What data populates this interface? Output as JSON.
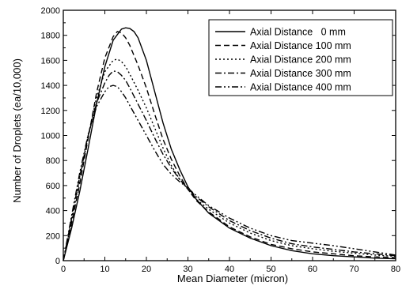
{
  "chart_data": {
    "type": "line",
    "xlabel": "Mean Diameter (micron)",
    "ylabel": "Number of Droplets  (ea/10,000)",
    "xlim": [
      0,
      80
    ],
    "ylim": [
      0,
      2000
    ],
    "xticks": [
      0,
      10,
      20,
      30,
      40,
      50,
      60,
      70,
      80
    ],
    "yticks": [
      0,
      200,
      400,
      600,
      800,
      1000,
      1200,
      1400,
      1600,
      1800,
      2000
    ],
    "grid": false,
    "legend_position": "top-right",
    "series": [
      {
        "name": "Axial Distance   0 mm",
        "dash": "none",
        "x": [
          0,
          2,
          4,
          6,
          8,
          10,
          12,
          14,
          15,
          16,
          17,
          18,
          20,
          22,
          24,
          26,
          28,
          30,
          32,
          35,
          40,
          45,
          50,
          55,
          60,
          65,
          70,
          75,
          80
        ],
        "y": [
          0,
          260,
          560,
          900,
          1250,
          1550,
          1760,
          1850,
          1860,
          1855,
          1830,
          1780,
          1600,
          1350,
          1100,
          890,
          730,
          590,
          490,
          380,
          260,
          180,
          120,
          80,
          55,
          40,
          30,
          20,
          15
        ]
      },
      {
        "name": "Axial Distance 100 mm",
        "dash": "7,4",
        "x": [
          0,
          2,
          4,
          6,
          8,
          10,
          12,
          13,
          14,
          15,
          16,
          18,
          20,
          22,
          24,
          26,
          28,
          30,
          32,
          35,
          40,
          45,
          50,
          55,
          60,
          65,
          70,
          75,
          80
        ],
        "y": [
          0,
          300,
          620,
          980,
          1340,
          1620,
          1790,
          1830,
          1820,
          1780,
          1720,
          1560,
          1380,
          1170,
          970,
          810,
          680,
          570,
          480,
          390,
          270,
          190,
          130,
          95,
          70,
          55,
          40,
          30,
          25
        ]
      },
      {
        "name": "Axial Distance 200 mm",
        "dash": "2,3",
        "x": [
          0,
          2,
          4,
          6,
          8,
          10,
          12,
          13,
          14,
          15,
          16,
          18,
          20,
          22,
          24,
          26,
          28,
          30,
          32,
          35,
          40,
          45,
          50,
          55,
          60,
          65,
          70,
          75,
          80
        ],
        "y": [
          0,
          320,
          660,
          1000,
          1300,
          1510,
          1600,
          1610,
          1590,
          1550,
          1490,
          1360,
          1220,
          1060,
          900,
          760,
          650,
          570,
          490,
          410,
          300,
          220,
          160,
          120,
          95,
          75,
          60,
          45,
          35
        ]
      },
      {
        "name": "Axial Distance 300 mm",
        "dash": "8,3,2,3",
        "x": [
          0,
          2,
          4,
          6,
          8,
          10,
          11,
          12,
          13,
          14,
          15,
          16,
          18,
          20,
          22,
          24,
          26,
          28,
          30,
          32,
          35,
          40,
          45,
          50,
          55,
          60,
          65,
          70,
          75,
          80
        ],
        "y": [
          0,
          340,
          680,
          1000,
          1260,
          1420,
          1480,
          1515,
          1510,
          1480,
          1440,
          1380,
          1250,
          1120,
          980,
          850,
          740,
          650,
          580,
          510,
          430,
          320,
          240,
          180,
          135,
          110,
          90,
          70,
          55,
          40
        ]
      },
      {
        "name": "Axial Distance 400 mm",
        "dash": "8,3,2,3,2,3",
        "x": [
          0,
          2,
          4,
          6,
          8,
          10,
          11,
          12,
          13,
          14,
          15,
          16,
          18,
          20,
          22,
          24,
          26,
          28,
          30,
          32,
          35,
          40,
          45,
          50,
          55,
          60,
          65,
          70,
          75,
          80
        ],
        "y": [
          0,
          360,
          710,
          1010,
          1230,
          1350,
          1390,
          1400,
          1390,
          1350,
          1300,
          1240,
          1120,
          1000,
          880,
          770,
          690,
          630,
          580,
          520,
          440,
          340,
          260,
          200,
          160,
          140,
          120,
          95,
          70,
          45
        ]
      }
    ]
  }
}
